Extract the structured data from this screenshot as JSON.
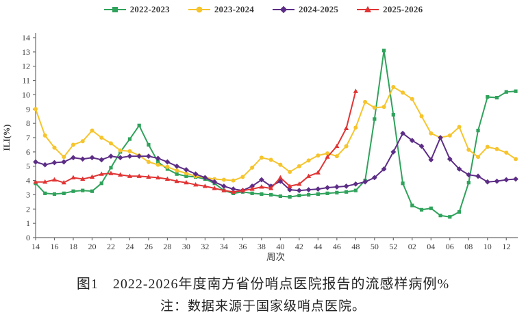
{
  "caption": {
    "title": "图1　2022-2026年度南方省份哨点医院报告的流感样病例%",
    "note": "注：数据来源于国家级哨点医院。"
  },
  "chart_data": {
    "type": "line",
    "title": "",
    "xlabel": "周次",
    "ylabel": "ILI(%)",
    "ylim": [
      0,
      14
    ],
    "ytick_step": 1,
    "x_label_every": 2,
    "grid": false,
    "legend_position": "top-center",
    "axis_color": "#6b6b6b",
    "categories": [
      "14",
      "15",
      "16",
      "17",
      "18",
      "19",
      "20",
      "21",
      "22",
      "23",
      "24",
      "25",
      "26",
      "27",
      "28",
      "29",
      "30",
      "31",
      "32",
      "33",
      "34",
      "35",
      "36",
      "37",
      "38",
      "39",
      "40",
      "41",
      "42",
      "43",
      "44",
      "45",
      "46",
      "47",
      "48",
      "49",
      "50",
      "51",
      "52",
      "01",
      "02",
      "03",
      "04",
      "05",
      "06",
      "07",
      "08",
      "09",
      "10",
      "11",
      "12",
      "13"
    ],
    "series": [
      {
        "name": "2022-2023",
        "color": "#2FA25B",
        "marker": "square",
        "values": [
          3.8,
          3.1,
          3.05,
          3.1,
          3.25,
          3.3,
          3.25,
          3.8,
          4.9,
          6.0,
          6.9,
          7.85,
          6.5,
          5.3,
          4.8,
          4.45,
          4.3,
          4.25,
          4.1,
          3.8,
          3.3,
          3.1,
          3.2,
          3.1,
          3.05,
          3.0,
          2.9,
          2.85,
          2.95,
          3.0,
          3.05,
          3.1,
          3.15,
          3.2,
          3.3,
          4.0,
          8.3,
          13.1,
          8.6,
          3.8,
          2.25,
          1.95,
          2.05,
          1.55,
          1.45,
          1.8,
          3.85,
          7.5,
          9.85,
          9.8,
          10.2,
          10.25
        ]
      },
      {
        "name": "2023-2024",
        "color": "#F6C42C",
        "marker": "circle",
        "values": [
          9.0,
          7.15,
          6.3,
          5.65,
          6.5,
          6.75,
          7.5,
          7.0,
          6.6,
          6.1,
          6.05,
          5.75,
          5.3,
          5.1,
          4.95,
          4.7,
          4.5,
          4.3,
          4.2,
          4.1,
          4.05,
          4.0,
          4.25,
          4.9,
          5.6,
          5.45,
          5.1,
          4.6,
          5.0,
          5.4,
          5.75,
          5.9,
          5.7,
          6.4,
          7.7,
          9.5,
          9.1,
          9.15,
          10.55,
          10.15,
          9.7,
          8.5,
          7.3,
          7.0,
          7.15,
          7.75,
          6.15,
          5.65,
          6.35,
          6.2,
          5.95,
          5.5
        ]
      },
      {
        "name": "2024-2025",
        "color": "#5C2D86",
        "marker": "diamond",
        "values": [
          5.3,
          5.1,
          5.25,
          5.3,
          5.6,
          5.5,
          5.6,
          5.45,
          5.7,
          5.6,
          5.7,
          5.7,
          5.7,
          5.55,
          5.3,
          5.0,
          4.75,
          4.45,
          4.2,
          3.9,
          3.6,
          3.4,
          3.3,
          3.6,
          4.05,
          3.6,
          3.95,
          3.35,
          3.3,
          3.35,
          3.4,
          3.5,
          3.55,
          3.6,
          3.75,
          3.9,
          4.2,
          4.8,
          6.0,
          7.3,
          6.8,
          6.4,
          5.45,
          7.0,
          5.5,
          4.8,
          4.4,
          4.3,
          3.9,
          3.95,
          4.05,
          4.1
        ]
      },
      {
        "name": "2025-2026",
        "color": "#E23434",
        "marker": "triangle",
        "values": [
          3.9,
          3.9,
          4.05,
          3.85,
          4.2,
          4.1,
          4.25,
          4.45,
          4.5,
          4.4,
          4.3,
          4.3,
          4.25,
          4.2,
          4.1,
          3.95,
          3.85,
          3.7,
          3.6,
          3.45,
          3.3,
          3.2,
          3.3,
          3.4,
          3.55,
          3.45,
          4.2,
          3.6,
          3.75,
          4.3,
          4.55,
          5.65,
          6.4,
          7.65,
          10.25
        ]
      }
    ]
  }
}
